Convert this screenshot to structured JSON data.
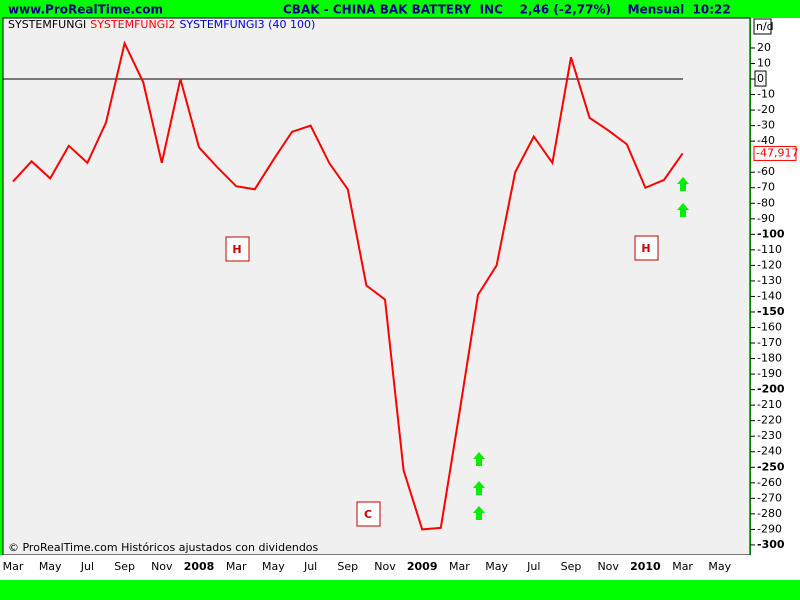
{
  "header": {
    "site": "www.ProRealTime.com",
    "title": "CBAK - CHINA BAK BATTERY  INC    2,46 (-2,77%)    Mensual  10:22"
  },
  "chart_data": {
    "type": "line",
    "legend": [
      {
        "text": "SYSTEMFUNGI",
        "color": "#000000"
      },
      {
        "text": "SYSTEMFUNGI2",
        "color": "#ff0000"
      },
      {
        "text": "SYSTEMFUNGI3 (40 100)",
        "color": "#0000cc"
      }
    ],
    "axis_note": "n/d",
    "categories": [
      "Mar",
      null,
      "May",
      null,
      "Jul",
      null,
      "Sep",
      null,
      "Nov",
      null,
      "2008",
      null,
      "Mar",
      null,
      "May",
      null,
      "Jul",
      null,
      "Sep",
      null,
      "Nov",
      null,
      "2009",
      null,
      "Mar",
      null,
      "May",
      null,
      "Jul",
      null,
      "Sep",
      null,
      "Nov",
      null,
      "2010",
      null,
      "Mar",
      null,
      "May"
    ],
    "series": [
      {
        "name": "SYSTEMFUNGI2",
        "color": "#ff0000",
        "values": [
          -66,
          -53,
          -64,
          -43,
          -54,
          -28,
          23,
          -2,
          -54,
          0,
          -44,
          -57,
          -69,
          -71,
          -52,
          -34,
          -30,
          -54,
          -71,
          -133,
          -142,
          -252,
          -290,
          -289,
          -215,
          -139,
          -120,
          -60,
          -37,
          -54,
          14,
          -25,
          -33,
          -42,
          -70,
          -65,
          -47.917,
          null,
          null
        ],
        "last_value_label": "-47,917"
      }
    ],
    "reference_line": 0,
    "ylim": [
      -305.2,
      39.3
    ],
    "yticks": [
      20,
      10,
      0,
      -10,
      -20,
      -30,
      -40,
      -60,
      -70,
      -80,
      -90,
      -100,
      -110,
      -120,
      -130,
      -140,
      -150,
      -160,
      -170,
      -180,
      -190,
      -200,
      -210,
      -220,
      -230,
      -240,
      -250,
      -260,
      -270,
      -280,
      -290,
      -300
    ],
    "annotations": [
      "H",
      "H",
      "C"
    ],
    "footer": "© ProRealTime.com Históricos ajustados con dividendos"
  }
}
